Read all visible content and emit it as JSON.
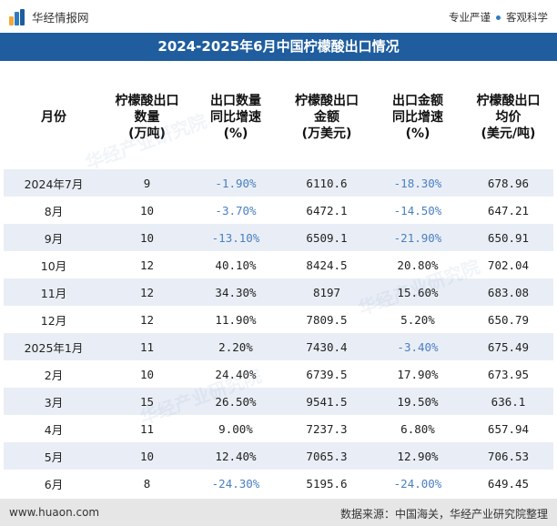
{
  "header": {
    "brand": "华经情报网",
    "slogan_left": "专业严谨",
    "slogan_right": "客观科学"
  },
  "title": "2024-2025年6月中国柠檬酸出口情况",
  "table": {
    "columns": [
      "月份",
      "柠檬酸出口\n数量\n(万吨)",
      "出口数量\n同比增速\n(%)",
      "柠檬酸出口\n金额\n(万美元)",
      "出口金额\n同比增速\n(%)",
      "柠檬酸出口\n均价\n(美元/吨)"
    ],
    "rows": [
      [
        "2024年7月",
        "9",
        "-1.90%",
        "6110.6",
        "-18.30%",
        "678.96"
      ],
      [
        "8月",
        "10",
        "-3.70%",
        "6472.1",
        "-14.50%",
        "647.21"
      ],
      [
        "9月",
        "10",
        "-13.10%",
        "6509.1",
        "-21.90%",
        "650.91"
      ],
      [
        "10月",
        "12",
        "40.10%",
        "8424.5",
        "20.80%",
        "702.04"
      ],
      [
        "11月",
        "12",
        "34.30%",
        "8197",
        "15.60%",
        "683.08"
      ],
      [
        "12月",
        "12",
        "11.90%",
        "7809.5",
        "5.20%",
        "650.79"
      ],
      [
        "2025年1月",
        "11",
        "2.20%",
        "7430.4",
        "-3.40%",
        "675.49"
      ],
      [
        "2月",
        "10",
        "24.40%",
        "6739.5",
        "17.90%",
        "673.95"
      ],
      [
        "3月",
        "15",
        "26.50%",
        "9541.5",
        "19.50%",
        "636.1"
      ],
      [
        "4月",
        "11",
        "9.00%",
        "7237.3",
        "6.80%",
        "657.94"
      ],
      [
        "5月",
        "10",
        "12.40%",
        "7065.3",
        "12.90%",
        "706.53"
      ],
      [
        "6月",
        "8",
        "-24.30%",
        "5195.6",
        "-24.00%",
        "649.45"
      ]
    ]
  },
  "footer": {
    "site": "www.huaon.com",
    "source": "数据来源：中国海关，华经产业研究院整理"
  },
  "colors": {
    "title_bar": "#1f5d9e",
    "stripe": "#e9eef6",
    "negative": "#4a7fc0",
    "footer_bg": "#e6e6e6"
  }
}
